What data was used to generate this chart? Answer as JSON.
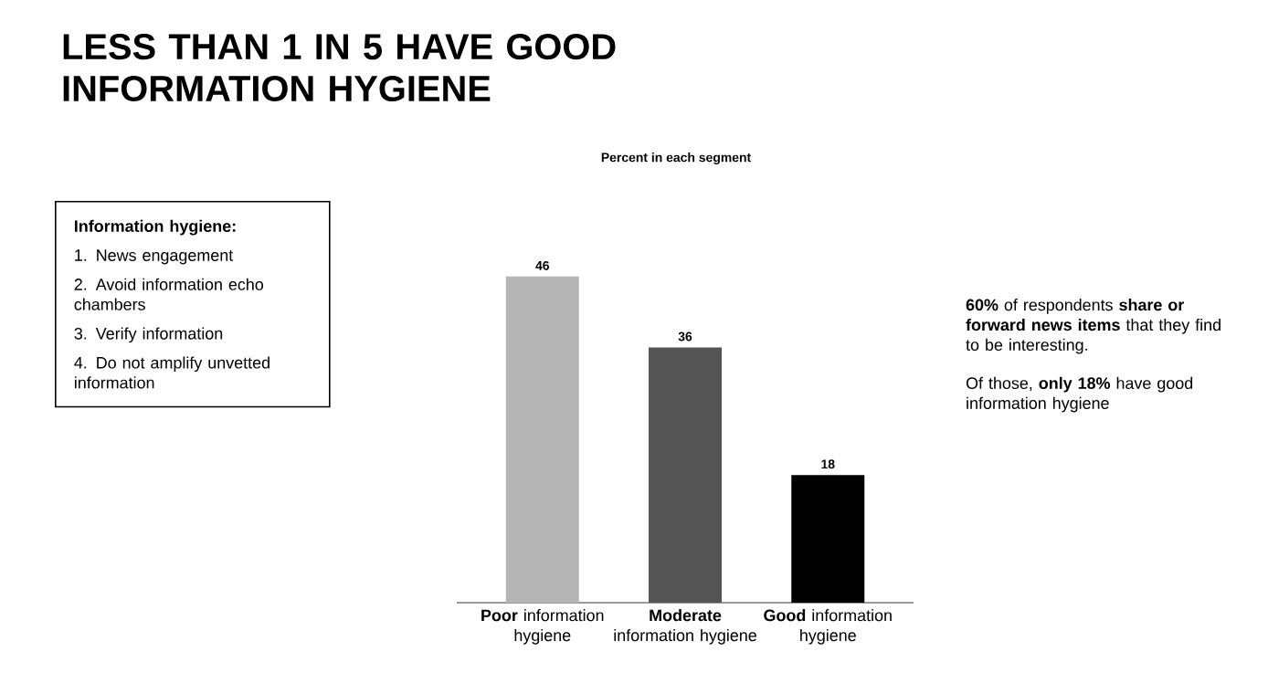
{
  "chart_data": {
    "type": "bar",
    "title": "LESS THAN 1 IN 5 HAVE GOOD INFORMATION HYGIENE",
    "subtitle": "Percent in each segment",
    "categories": [
      "**Poor** information hygiene",
      "**Moderate** information hygiene",
      "**Good** information hygiene"
    ],
    "values": [
      46,
      36,
      18
    ],
    "colors": [
      "#b5b5b5",
      "#555555",
      "#000000"
    ],
    "data_labels": true,
    "annotations": [
      "**Information hygiene:**",
      "1. News engagement",
      "2. Avoid information echo chambers",
      "3. Verify information",
      "4. Do not amplify unvetted information",
      "**60%** of respondents **share or forward news items** that they find to be interesting.",
      "Of those, **only 18%** have good information hygiene"
    ]
  }
}
